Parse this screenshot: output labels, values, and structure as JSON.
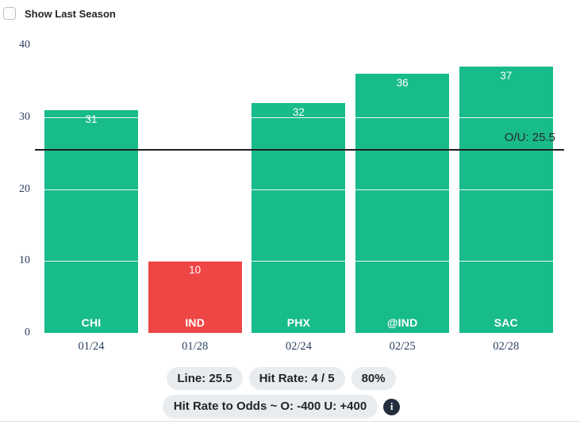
{
  "controls": {
    "show_last_season_label": "Show Last Season",
    "show_last_season_checked": false
  },
  "chart_data": {
    "type": "bar",
    "categories": [
      "CHI",
      "IND",
      "PHX",
      "@IND",
      "SAC"
    ],
    "x_dates": [
      "01/24",
      "01/28",
      "02/24",
      "02/25",
      "02/28"
    ],
    "values": [
      31,
      10,
      32,
      36,
      37
    ],
    "results": [
      "over",
      "under",
      "over",
      "over",
      "over"
    ],
    "yticks": [
      0,
      10,
      20,
      30,
      40
    ],
    "ylim": [
      0,
      40
    ],
    "line": {
      "value": 25.5,
      "label": "O/U: 25.5"
    },
    "colors": {
      "over": "#18bb8a",
      "under": "#ee4545",
      "line": "#1f1f1f",
      "axis_text": "#2a3f5f",
      "bar_label": "#ffffff"
    },
    "grid": "horizontal-white-over-bars",
    "legend": "none",
    "title": ""
  },
  "summary": {
    "pills": [
      "Line: 25.5",
      "Hit Rate: 4 / 5",
      "80%"
    ],
    "odds_pill": "Hit Rate to Odds ~ O: -400 U: +400",
    "info_icon_glyph": "i"
  }
}
